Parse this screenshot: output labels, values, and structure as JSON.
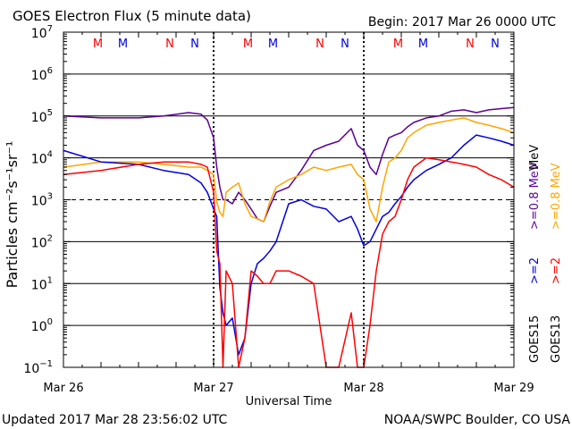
{
  "header": {
    "title": "GOES Electron Flux (5 minute data)",
    "begin": "Begin: 2017 Mar 26 0000 UTC"
  },
  "footer": {
    "updated": "Updated 2017 Mar 28 23:56:02 UTC",
    "credit": "NOAA/SWPC Boulder, CO USA"
  },
  "axes": {
    "xlabel": "Universal Time",
    "ylabel": "Particles cm⁻²s⁻¹sr⁻¹",
    "xticks": [
      "Mar 26",
      "Mar 27",
      "Mar 28",
      "Mar 29"
    ],
    "ytick_base": "10",
    "yticks": [
      "−1",
      "0",
      "1",
      "2",
      "3",
      "4",
      "5",
      "6",
      "7"
    ]
  },
  "legend": {
    "goes15": "GOES15",
    "goes13": "GOES13",
    "g15_08": ">=0.8 MeV",
    "g13_08": ">=0.8 MeV",
    "g15_2": ">=2",
    "g13_2": ">=2",
    "mev": "MeV"
  },
  "markers": {
    "m": "M",
    "n": "N"
  },
  "colors": {
    "goes15_08": "#5a0096",
    "goes13_08": "#ffa500",
    "goes15_2": "#0000e0",
    "goes13_2": "#ff0000"
  },
  "chart_data": {
    "type": "line",
    "xlabel": "Universal Time",
    "ylabel": "Particles cm-2s-1sr-1",
    "xlim": [
      "2017-03-26 00:00",
      "2017-03-29 00:00"
    ],
    "ylim": [
      0.1,
      10000000
    ],
    "yscale": "log",
    "threshold_line": 1000,
    "day_boundaries": [
      "2017-03-27 00:00",
      "2017-03-28 00:00"
    ],
    "x_hours_since_begin": [
      0,
      6,
      12,
      16,
      20,
      22,
      23,
      24,
      24.5,
      25,
      25.5,
      26,
      27,
      28,
      29,
      30,
      31,
      32,
      33,
      34,
      36,
      38,
      40,
      42,
      44,
      46,
      47,
      48,
      49,
      50,
      51,
      52,
      53,
      54,
      55,
      56,
      58,
      60,
      62,
      64,
      66,
      68,
      70,
      72
    ],
    "series": [
      {
        "name": ">=0.8 MeV GOES15",
        "color": "#5a0096",
        "values": [
          100000,
          90000,
          90000,
          100000,
          120000,
          110000,
          80000,
          30000,
          6000,
          2000,
          1000,
          1000,
          800,
          1500,
          1000,
          600,
          350,
          300,
          700,
          1500,
          2000,
          5000,
          15000,
          20000,
          25000,
          50000,
          20000,
          15000,
          6000,
          4000,
          12000,
          30000,
          35000,
          40000,
          55000,
          70000,
          90000,
          100000,
          130000,
          140000,
          120000,
          140000,
          150000,
          160000
        ]
      },
      {
        "name": ">=0.8 MeV GOES13",
        "color": "#ffa500",
        "values": [
          6000,
          8000,
          8000,
          7000,
          6000,
          6000,
          5000,
          4000,
          900,
          500,
          400,
          1500,
          2000,
          2500,
          800,
          400,
          350,
          300,
          900,
          2000,
          3000,
          4000,
          6000,
          5000,
          6000,
          7000,
          4000,
          3000,
          600,
          300,
          2000,
          8000,
          10000,
          15000,
          30000,
          40000,
          60000,
          70000,
          80000,
          90000,
          70000,
          60000,
          50000,
          40000
        ]
      },
      {
        "name": ">=2 GOES15",
        "color": "#0000e0",
        "values": [
          15000,
          8000,
          7000,
          5000,
          4000,
          2500,
          1500,
          600,
          400,
          8,
          2,
          1,
          1.5,
          0.2,
          0.5,
          10,
          30,
          40,
          60,
          100,
          800,
          1000,
          700,
          600,
          300,
          400,
          200,
          80,
          100,
          200,
          400,
          500,
          800,
          1200,
          2000,
          3000,
          5000,
          7000,
          10000,
          20000,
          35000,
          30000,
          25000,
          20000
        ]
      },
      {
        "name": ">=2 GOES13",
        "color": "#ff0000",
        "values": [
          4000,
          5000,
          7000,
          8000,
          8000,
          7000,
          6000,
          1500,
          60,
          30,
          0.1,
          20,
          10,
          0.1,
          0.5,
          20,
          15,
          10,
          10,
          20,
          20,
          15,
          10,
          0.1,
          0.1,
          2,
          0.1,
          0.1,
          1,
          20,
          150,
          300,
          400,
          1000,
          3000,
          6000,
          10000,
          9000,
          8000,
          7000,
          6000,
          4000,
          3000,
          2000
        ]
      }
    ],
    "event_markers": [
      {
        "day": "Mar 26",
        "labels": [
          "M",
          "M",
          "N",
          "N"
        ]
      },
      {
        "day": "Mar 27",
        "labels": [
          "M",
          "M",
          "N",
          "N"
        ]
      },
      {
        "day": "Mar 28",
        "labels": [
          "M",
          "M",
          "N",
          "N"
        ]
      }
    ]
  }
}
